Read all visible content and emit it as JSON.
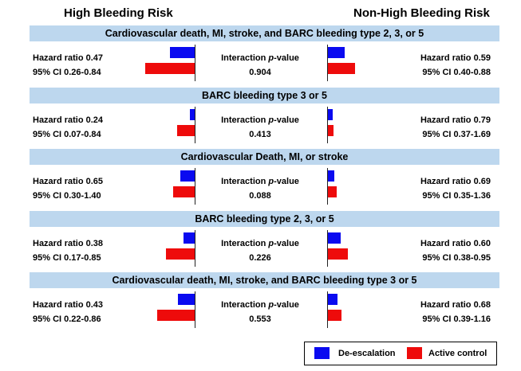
{
  "headers": {
    "left": "High Bleeding Risk",
    "right": "Non-High Bleeding Risk"
  },
  "interaction_label": "Interaction p-value",
  "colors": {
    "band": "#bdd7ee",
    "de_escalation": "#0a0af0",
    "active_control": "#ee0b0b"
  },
  "legend": {
    "de_escalation": "De-escalation",
    "active_control": "Active control"
  },
  "chart_data": {
    "type": "bar",
    "title": "",
    "xlabel": "",
    "ylabel": "",
    "orientation": "horizontal, mirrored around central axis",
    "series": [
      {
        "name": "De-escalation"
      },
      {
        "name": "Active control"
      }
    ],
    "panels": [
      {
        "title": "Cardiovascular death, MI, stroke, and BARC bleeding type 2, 3, or 5",
        "interaction": "0.904",
        "hbr": {
          "hr": "Hazard ratio 0.47",
          "ci": "95% CI 0.26-0.84",
          "de_escalation": 31,
          "active_control": 62
        },
        "nhbr": {
          "hr": "Hazard ratio 0.59",
          "ci": "95% CI 0.40-0.88",
          "de_escalation": 21,
          "active_control": 34
        }
      },
      {
        "title": "BARC bleeding type 3 or 5",
        "interaction": "0.413",
        "hbr": {
          "hr": "Hazard ratio 0.24",
          "ci": "95% CI 0.07-0.84",
          "de_escalation": 6,
          "active_control": 22
        },
        "nhbr": {
          "hr": "Hazard ratio 0.79",
          "ci": "95% CI 0.37-1.69",
          "de_escalation": 6,
          "active_control": 7
        }
      },
      {
        "title": "Cardiovascular Death, MI, or stroke",
        "interaction": "0.088",
        "hbr": {
          "hr": "Hazard ratio 0.65",
          "ci": "95% CI 0.30-1.40",
          "de_escalation": 18,
          "active_control": 27
        },
        "nhbr": {
          "hr": "Hazard ratio 0.69",
          "ci": "95% CI 0.35-1.36",
          "de_escalation": 8,
          "active_control": 11
        }
      },
      {
        "title": "BARC bleeding type 2, 3, or 5",
        "interaction": "0.226",
        "hbr": {
          "hr": "Hazard ratio 0.38",
          "ci": "95% CI 0.17-0.85",
          "de_escalation": 14,
          "active_control": 36
        },
        "nhbr": {
          "hr": "Hazard ratio 0.60",
          "ci": "95% CI 0.38-0.95",
          "de_escalation": 16,
          "active_control": 25
        }
      },
      {
        "title": "Cardiovascular death, MI, stroke, and BARC bleeding type 3 or 5",
        "interaction": "0.553",
        "hbr": {
          "hr": "Hazard ratio 0.43",
          "ci": "95% CI 0.22-0.86",
          "de_escalation": 21,
          "active_control": 47
        },
        "nhbr": {
          "hr": "Hazard ratio 0.68",
          "ci": "95% CI 0.39-1.16",
          "de_escalation": 12,
          "active_control": 17
        }
      }
    ]
  }
}
